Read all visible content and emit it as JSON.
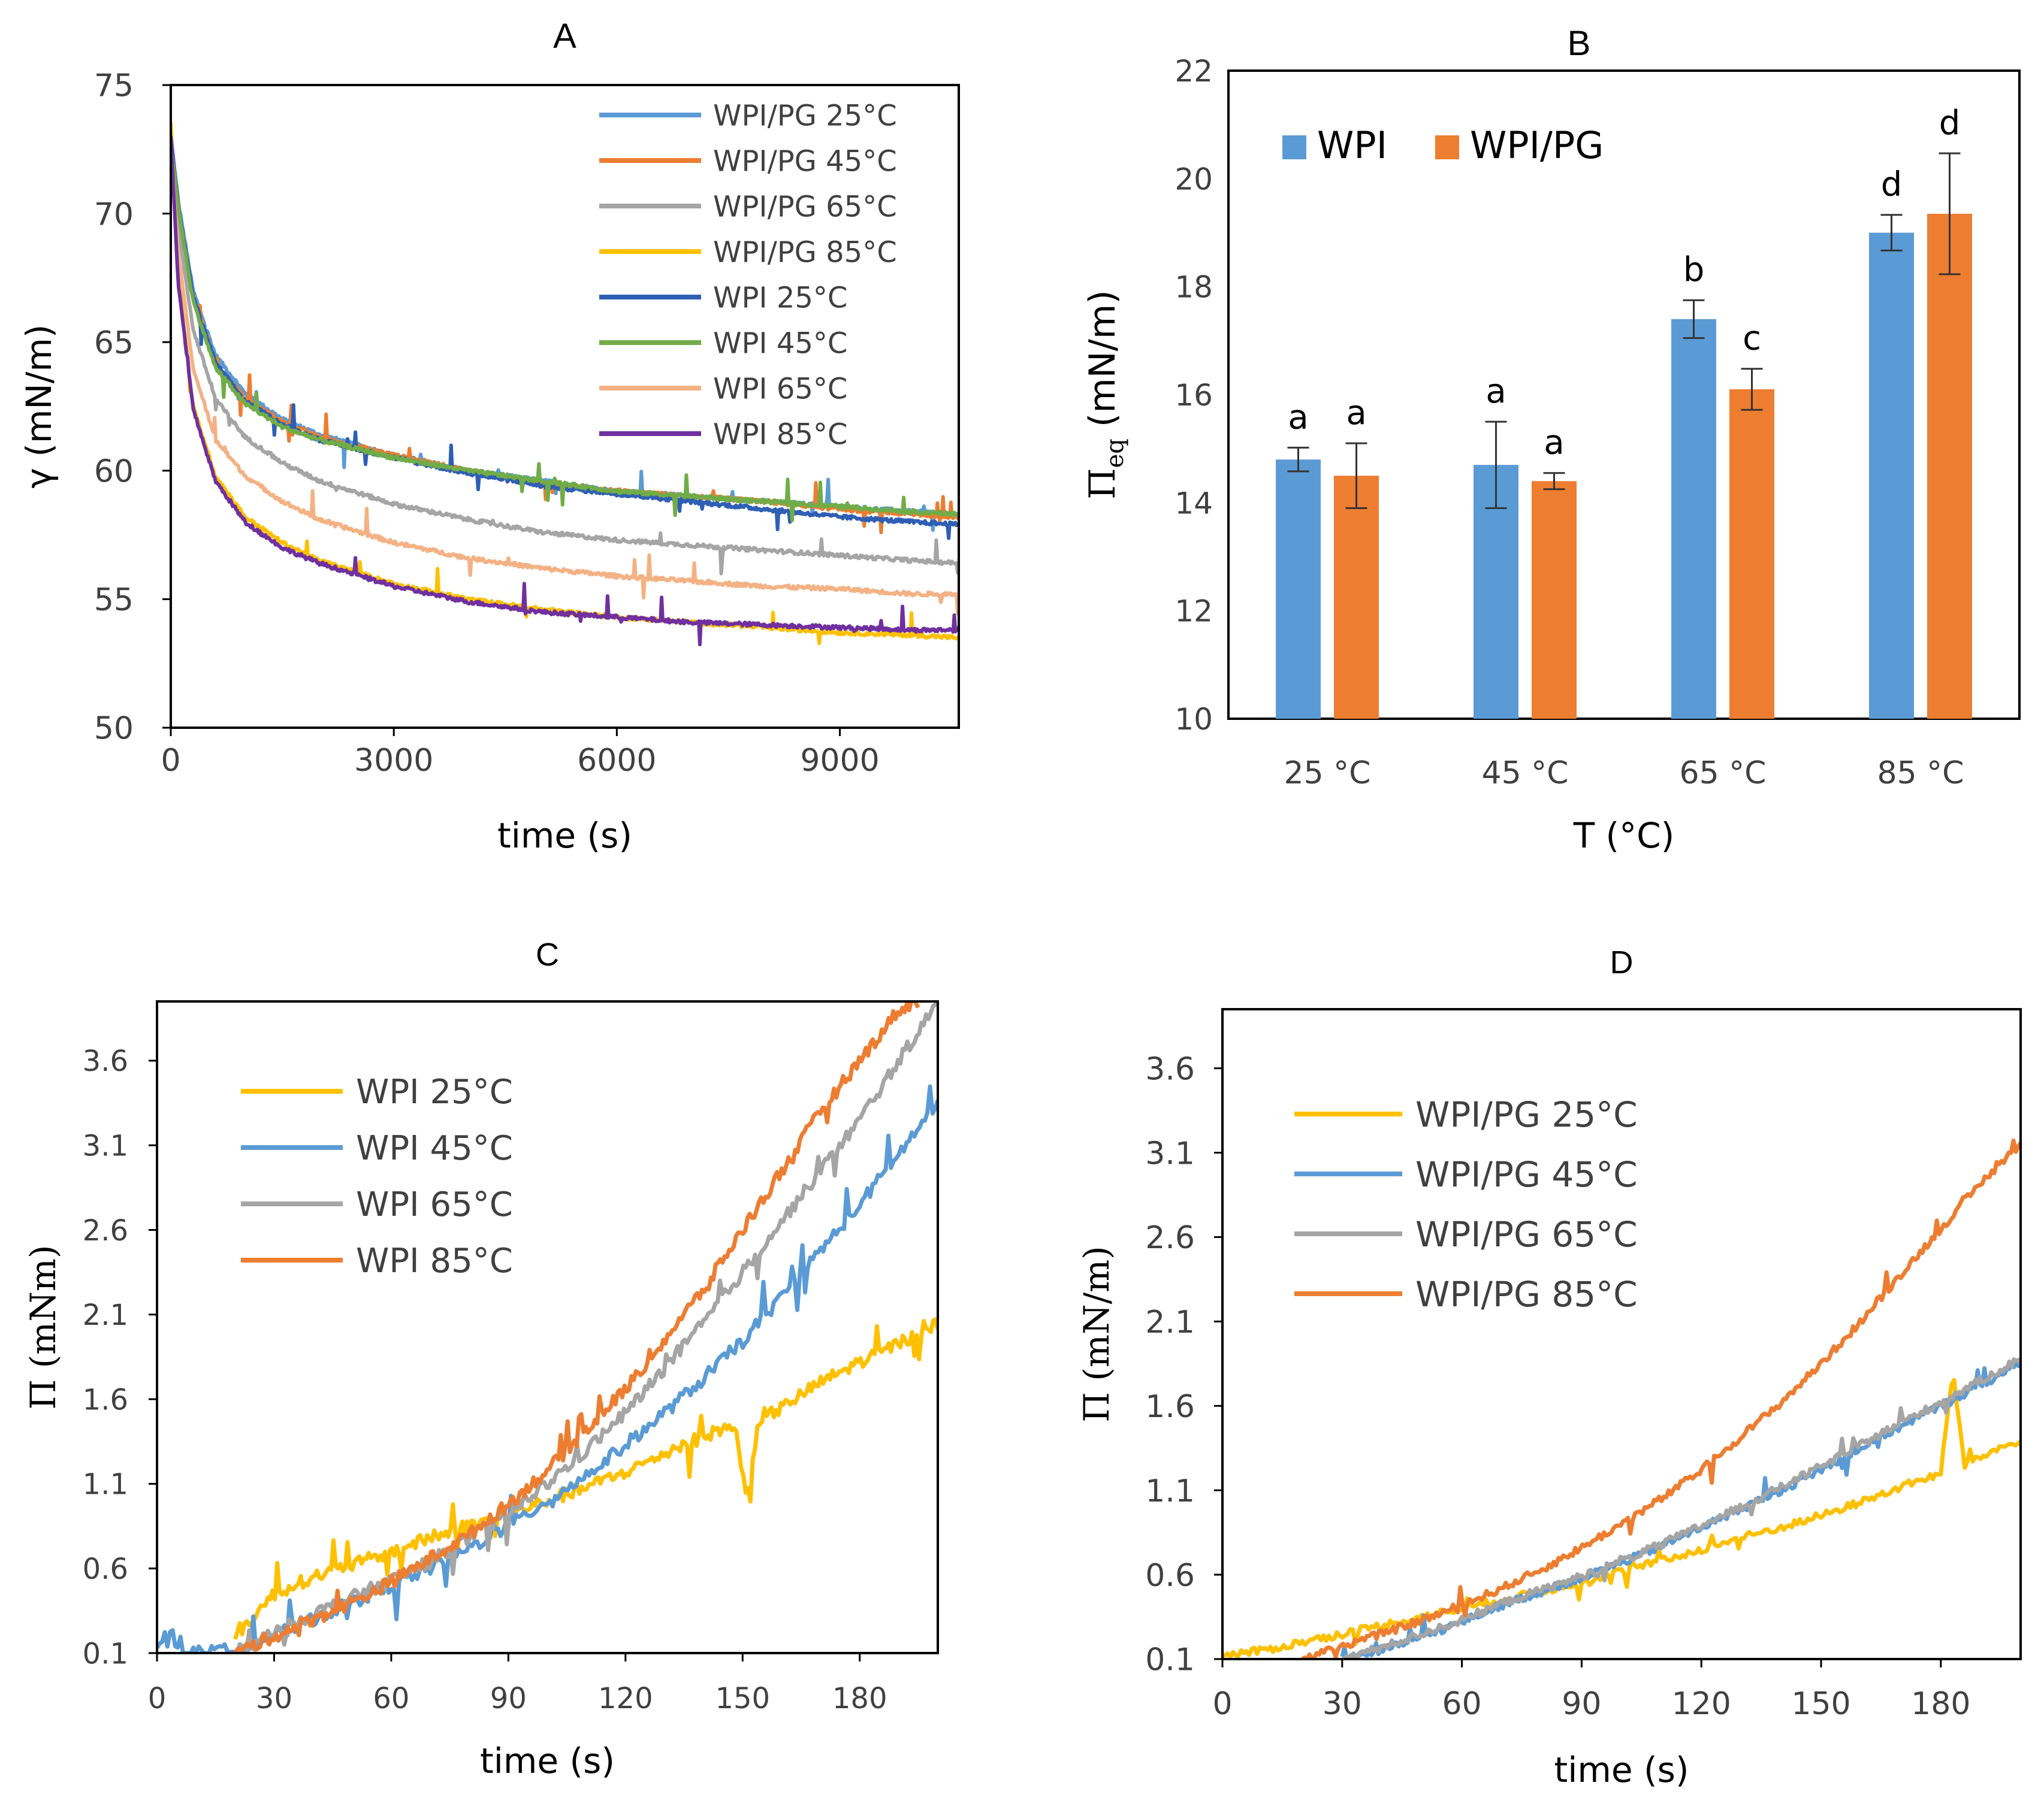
{
  "colors": {
    "blue": "#5b9bd5",
    "orange": "#ed7d31",
    "gray": "#a5a5a5",
    "gold": "#ffc000",
    "darkblue": "#2e5fb4",
    "green": "#70ad47",
    "salmon": "#f4b183",
    "purple": "#7030a0"
  },
  "chart_data": [
    {
      "panel": "A",
      "type": "line",
      "title": "A",
      "xlabel": "time (s)",
      "ylabel": "γ (mN/m)",
      "xlim": [
        0,
        10600
      ],
      "ylim": [
        50,
        75
      ],
      "xticks": [
        0,
        3000,
        6000,
        9000
      ],
      "yticks": [
        50,
        55,
        60,
        65,
        70,
        75
      ],
      "xtick_labels": [
        "0",
        "3000",
        "6000",
        "9000"
      ],
      "ytick_labels": [
        "50",
        "55",
        "60",
        "65",
        "70",
        "75"
      ],
      "legend": "top-right",
      "series": [
        {
          "name": "WPI/PG 25°C",
          "color": "#5b9bd5",
          "x": [
            0,
            100,
            300,
            600,
            1000,
            1500,
            2000,
            3000,
            4000,
            5000,
            6000,
            7000,
            8000,
            9000,
            10000,
            10600
          ],
          "y": [
            73,
            70.5,
            67,
            64.5,
            63,
            62,
            61.4,
            60.6,
            60,
            59.6,
            59.2,
            59,
            58.8,
            58.6,
            58.4,
            58.3
          ]
        },
        {
          "name": "WPI/PG 45°C",
          "color": "#ed7d31",
          "x": [
            0,
            100,
            300,
            600,
            1000,
            1500,
            2000,
            3000,
            4000,
            5000,
            6000,
            7000,
            8000,
            9000,
            10000,
            10600
          ],
          "y": [
            73,
            70.3,
            66.8,
            64.2,
            62.8,
            61.9,
            61.3,
            60.6,
            60,
            59.5,
            59.2,
            59,
            58.8,
            58.5,
            58.3,
            58.2
          ]
        },
        {
          "name": "WPI/PG 65°C",
          "color": "#a5a5a5",
          "x": [
            0,
            100,
            300,
            600,
            1000,
            1500,
            2000,
            3000,
            4000,
            5000,
            6000,
            7000,
            8000,
            9000,
            10000,
            10600
          ],
          "y": [
            73,
            69.5,
            65.5,
            62.8,
            61.3,
            60.3,
            59.6,
            58.7,
            58.1,
            57.6,
            57.3,
            57.1,
            56.9,
            56.7,
            56.5,
            56.4
          ]
        },
        {
          "name": "WPI/PG 85°C",
          "color": "#ffc000",
          "x": [
            0,
            100,
            300,
            600,
            1000,
            1500,
            2000,
            3000,
            4000,
            5000,
            6000,
            7000,
            8000,
            9000,
            10000,
            10600
          ],
          "y": [
            73.5,
            67.5,
            62.5,
            59.8,
            58.2,
            57.2,
            56.5,
            55.6,
            55,
            54.6,
            54.3,
            54.1,
            53.9,
            53.7,
            53.6,
            53.5
          ]
        },
        {
          "name": "WPI 25°C",
          "color": "#2e5fb4",
          "x": [
            0,
            100,
            300,
            600,
            1000,
            1500,
            2000,
            3000,
            4000,
            5000,
            6000,
            7000,
            8000,
            9000,
            10000,
            10600
          ],
          "y": [
            73,
            70.3,
            66.8,
            64.2,
            62.7,
            61.8,
            61.2,
            60.5,
            59.9,
            59.4,
            59.1,
            58.8,
            58.5,
            58.2,
            58,
            57.9
          ]
        },
        {
          "name": "WPI 45°C",
          "color": "#70ad47",
          "x": [
            0,
            100,
            300,
            600,
            1000,
            1500,
            2000,
            3000,
            4000,
            5000,
            6000,
            7000,
            8000,
            9000,
            10000,
            10600
          ],
          "y": [
            72.8,
            70.2,
            66.6,
            64,
            62.6,
            61.7,
            61.2,
            60.5,
            60,
            59.6,
            59.2,
            59,
            58.8,
            58.6,
            58.4,
            58.3
          ]
        },
        {
          "name": "WPI 65°C",
          "color": "#f4b183",
          "x": [
            0,
            100,
            300,
            600,
            1000,
            1500,
            2000,
            3000,
            4000,
            5000,
            6000,
            7000,
            8000,
            9000,
            10000,
            10600
          ],
          "y": [
            72.5,
            68.5,
            64,
            61.2,
            59.8,
            58.8,
            58.1,
            57.2,
            56.6,
            56.2,
            55.9,
            55.7,
            55.5,
            55.4,
            55.2,
            55.2
          ]
        },
        {
          "name": "WPI 85°C",
          "color": "#7030a0",
          "x": [
            0,
            100,
            300,
            600,
            1000,
            1500,
            2000,
            3000,
            4000,
            5000,
            6000,
            7000,
            8000,
            9000,
            10000,
            10600
          ],
          "y": [
            73,
            67.3,
            62.4,
            59.6,
            58,
            57,
            56.4,
            55.5,
            54.9,
            54.5,
            54.3,
            54.1,
            54,
            53.9,
            53.8,
            53.8
          ]
        }
      ]
    },
    {
      "panel": "B",
      "type": "bar",
      "title": "B",
      "xlabel": "T (°C)",
      "ylabel_main": "Π",
      "ylabel_sub": "eq",
      "ylabel_rest": " (mN/m)",
      "ylim": [
        10,
        22
      ],
      "yticks": [
        10,
        12,
        14,
        16,
        18,
        20,
        22
      ],
      "ytick_labels": [
        "10",
        "12",
        "14",
        "16",
        "18",
        "20",
        "22"
      ],
      "categories": [
        "25 °C",
        "45 °C",
        "65 °C",
        "85 °C"
      ],
      "legend": "top-left",
      "series": [
        {
          "name": "WPI",
          "color": "#5b9bd5",
          "values": [
            14.8,
            14.7,
            17.4,
            19
          ],
          "errors": [
            0.22,
            0.8,
            0.35,
            0.33
          ],
          "letters": [
            "a",
            "a",
            "b",
            "d"
          ]
        },
        {
          "name": "WPI/PG",
          "color": "#ed7d31",
          "values": [
            14.5,
            14.4,
            16.1,
            19.35
          ],
          "errors": [
            0.6,
            0.15,
            0.38,
            1.12
          ],
          "letters": [
            "a",
            "a",
            "c",
            "d"
          ]
        }
      ]
    },
    {
      "panel": "C",
      "type": "line",
      "title": "C",
      "xlabel": "time (s)",
      "ylabel": "Π  (mNm)",
      "xlim": [
        0,
        200
      ],
      "ylim": [
        0.1,
        3.95
      ],
      "xticks": [
        0,
        30,
        60,
        90,
        120,
        150,
        180
      ],
      "yticks": [
        0.1,
        0.6,
        1.1,
        1.6,
        2.1,
        2.6,
        3.1,
        3.6
      ],
      "xtick_labels": [
        "0",
        "30",
        "60",
        "90",
        "120",
        "150",
        "180"
      ],
      "ytick_labels": [
        "0.1",
        "0.6",
        "1.1",
        "1.6",
        "2.1",
        "2.6",
        "3.1",
        "3.6"
      ],
      "legend": "top-left",
      "series": [
        {
          "name": "WPI 25°C",
          "color": "#ffc000",
          "x": [
            20,
            30,
            40,
            50,
            60,
            70,
            80,
            90,
            100,
            110,
            120,
            130,
            140,
            148,
            151,
            154,
            160,
            170,
            180,
            190,
            200
          ],
          "y": [
            0.2,
            0.45,
            0.55,
            0.62,
            0.7,
            0.78,
            0.85,
            0.92,
            1.0,
            1.08,
            1.17,
            1.28,
            1.38,
            1.45,
            1.0,
            1.47,
            1.55,
            1.7,
            1.82,
            1.93,
            2.05
          ]
        },
        {
          "name": "WPI 45°C",
          "color": "#5b9bd5",
          "x": [
            0,
            3,
            6,
            10,
            20,
            30,
            40,
            50,
            60,
            70,
            80,
            90,
            100,
            110,
            120,
            130,
            140,
            150,
            160,
            170,
            180,
            190,
            200
          ],
          "y": [
            0.1,
            0.25,
            0.1,
            0.1,
            0.12,
            0.2,
            0.3,
            0.4,
            0.5,
            0.6,
            0.72,
            0.85,
            1.0,
            1.15,
            1.33,
            1.52,
            1.72,
            1.95,
            2.2,
            2.48,
            2.75,
            3.05,
            3.35
          ]
        },
        {
          "name": "WPI 65°C",
          "color": "#a5a5a5",
          "x": [
            20,
            30,
            40,
            50,
            60,
            70,
            80,
            90,
            100,
            110,
            120,
            130,
            140,
            150,
            160,
            170,
            180,
            190,
            200
          ],
          "y": [
            0.1,
            0.22,
            0.33,
            0.43,
            0.53,
            0.64,
            0.78,
            0.93,
            1.1,
            1.3,
            1.52,
            1.78,
            2.05,
            2.35,
            2.65,
            2.95,
            3.25,
            3.6,
            3.95
          ]
        },
        {
          "name": "WPI 85°C",
          "color": "#ed7d31",
          "x": [
            20,
            30,
            40,
            50,
            60,
            70,
            80,
            90,
            100,
            110,
            120,
            130,
            140,
            150,
            160,
            170,
            180,
            190,
            195
          ],
          "y": [
            0.1,
            0.2,
            0.3,
            0.4,
            0.52,
            0.66,
            0.8,
            0.98,
            1.18,
            1.42,
            1.66,
            1.95,
            2.25,
            2.6,
            2.95,
            3.3,
            3.6,
            3.9,
            3.95
          ]
        }
      ]
    },
    {
      "panel": "D",
      "type": "line",
      "title": "D",
      "xlabel": "time (s)",
      "ylabel": "Π  (mN/m)",
      "xlim": [
        0,
        200
      ],
      "ylim": [
        0.1,
        3.95
      ],
      "xticks": [
        0,
        30,
        60,
        90,
        120,
        150,
        180
      ],
      "yticks": [
        0.1,
        0.6,
        1.1,
        1.6,
        2.1,
        2.6,
        3.1,
        3.6
      ],
      "xtick_labels": [
        "0",
        "30",
        "60",
        "90",
        "120",
        "150",
        "180"
      ],
      "ytick_labels": [
        "0.1",
        "0.6",
        "1.1",
        "1.6",
        "2.1",
        "2.6",
        "3.1",
        "3.6"
      ],
      "legend": "top-left",
      "series": [
        {
          "name": "WPI/PG 25°C",
          "color": "#ffc000",
          "x": [
            0,
            10,
            20,
            30,
            40,
            50,
            60,
            70,
            80,
            90,
            100,
            110,
            120,
            130,
            140,
            150,
            160,
            170,
            180,
            183,
            186,
            190,
            200
          ],
          "y": [
            0.12,
            0.15,
            0.2,
            0.25,
            0.3,
            0.35,
            0.4,
            0.45,
            0.5,
            0.56,
            0.62,
            0.68,
            0.75,
            0.82,
            0.88,
            0.95,
            1.03,
            1.12,
            1.2,
            1.8,
            1.25,
            1.3,
            1.4
          ]
        },
        {
          "name": "WPI/PG 45°C",
          "color": "#5b9bd5",
          "x": [
            30,
            40,
            50,
            60,
            70,
            80,
            90,
            100,
            110,
            120,
            130,
            140,
            150,
            160,
            170,
            180,
            190,
            200
          ],
          "y": [
            0.1,
            0.15,
            0.23,
            0.32,
            0.42,
            0.5,
            0.58,
            0.67,
            0.77,
            0.88,
            0.99,
            1.1,
            1.22,
            1.35,
            1.48,
            1.6,
            1.72,
            1.85
          ]
        },
        {
          "name": "WPI/PG 65°C",
          "color": "#a5a5a5",
          "x": [
            30,
            40,
            50,
            60,
            70,
            80,
            90,
            100,
            110,
            120,
            130,
            140,
            150,
            160,
            170,
            180,
            190,
            200
          ],
          "y": [
            0.1,
            0.17,
            0.25,
            0.33,
            0.43,
            0.51,
            0.59,
            0.68,
            0.78,
            0.89,
            1.0,
            1.12,
            1.24,
            1.37,
            1.5,
            1.62,
            1.75,
            1.88
          ]
        },
        {
          "name": "WPI/PG 85°C",
          "color": "#ed7d31",
          "x": [
            20,
            30,
            40,
            50,
            60,
            70,
            80,
            90,
            100,
            110,
            120,
            130,
            140,
            150,
            160,
            170,
            180,
            190,
            200
          ],
          "y": [
            0.1,
            0.18,
            0.25,
            0.33,
            0.42,
            0.52,
            0.63,
            0.76,
            0.9,
            1.05,
            1.22,
            1.42,
            1.62,
            1.85,
            2.1,
            2.38,
            2.65,
            2.92,
            3.15
          ]
        }
      ]
    }
  ]
}
